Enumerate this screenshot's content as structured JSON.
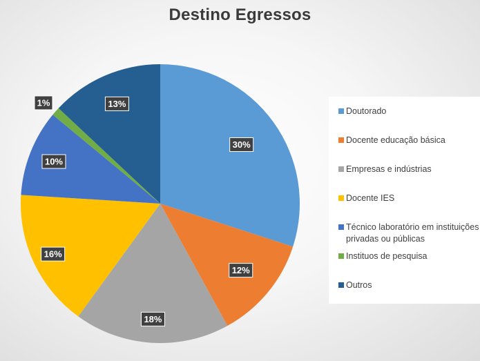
{
  "chart_data": {
    "type": "pie",
    "title": "Destino Egressos",
    "categories": [
      "Doutorado",
      "Docente educação básica",
      "Empresas e indústrias",
      "Docente IES",
      "Técnico laboratório em instituições privadas ou públicas",
      "Instituos de pesquisa",
      "Outros"
    ],
    "values": [
      30,
      12,
      18,
      16,
      10,
      1,
      13
    ],
    "data_labels": [
      "30%",
      "12%",
      "18%",
      "16%",
      "10%",
      "1%",
      "13%"
    ],
    "colors": [
      "#5b9bd5",
      "#ed7d31",
      "#a5a5a5",
      "#ffc000",
      "#4472c4",
      "#70ad47",
      "#255e91"
    ],
    "legend_position": "right"
  }
}
